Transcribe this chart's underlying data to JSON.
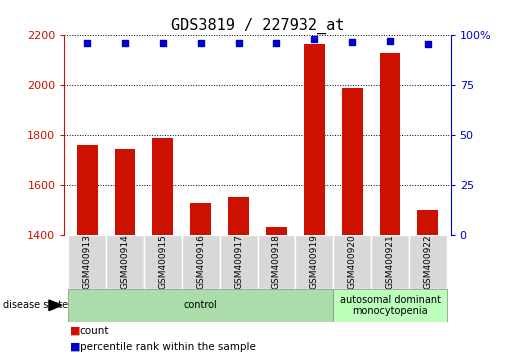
{
  "title": "GDS3819 / 227932_at",
  "samples": [
    "GSM400913",
    "GSM400914",
    "GSM400915",
    "GSM400916",
    "GSM400917",
    "GSM400918",
    "GSM400919",
    "GSM400920",
    "GSM400921",
    "GSM400922"
  ],
  "counts": [
    1760,
    1745,
    1790,
    1530,
    1555,
    1435,
    2165,
    1990,
    2130,
    1500
  ],
  "percentiles": [
    96,
    96,
    96,
    96,
    96,
    96,
    98,
    96.5,
    97,
    95.5
  ],
  "ylim_left": [
    1400,
    2200
  ],
  "ylim_right": [
    0,
    100
  ],
  "yticks_left": [
    1400,
    1600,
    1800,
    2000,
    2200
  ],
  "yticks_right": [
    0,
    25,
    50,
    75,
    100
  ],
  "bar_color": "#cc1100",
  "dot_color": "#0000cc",
  "title_fontsize": 11,
  "axis_color_left": "#cc1100",
  "axis_color_right": "#0000cc",
  "groups": [
    {
      "label": "control",
      "start": 0,
      "end": 7,
      "color": "#aaddaa"
    },
    {
      "label": "autosomal dominant\nmonocytopenia",
      "start": 7,
      "end": 10,
      "color": "#bbffbb"
    }
  ],
  "disease_state_label": "disease state",
  "legend_count_label": "count",
  "legend_percentile_label": "percentile rank within the sample",
  "bar_width": 0.55,
  "bar_bottom": 1400,
  "sample_box_color": "#d8d8d8",
  "background_color": "#ffffff"
}
